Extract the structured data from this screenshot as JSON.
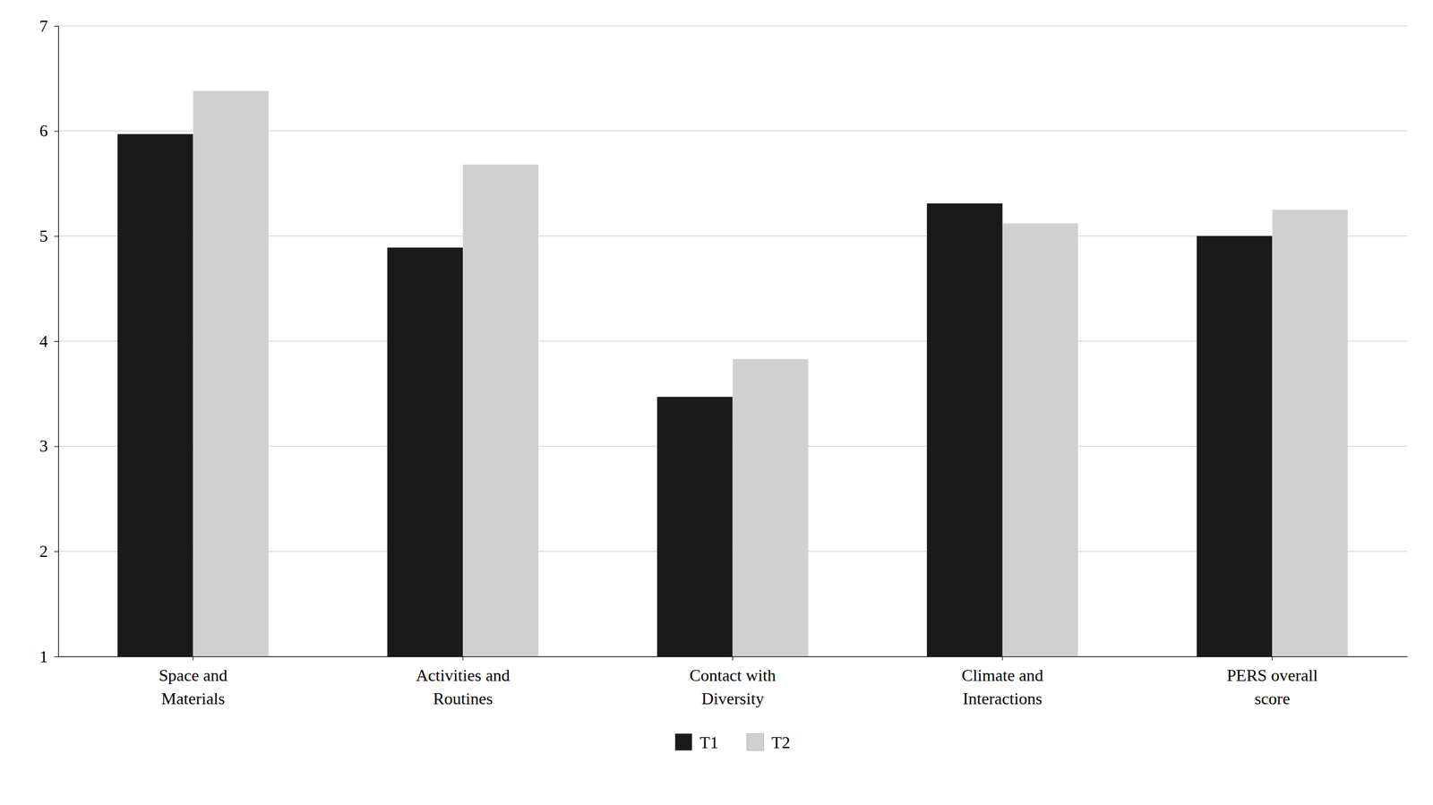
{
  "chart_data": {
    "type": "bar",
    "categories": [
      "Space and\nMaterials",
      "Activities and\nRoutines",
      "Contact with\nDiversity",
      "Climate and\nInteractions",
      "PERS overall\nscore"
    ],
    "series": [
      {
        "name": "T1",
        "color": "#1a1a1a",
        "values": [
          5.97,
          4.89,
          3.47,
          5.31,
          5.0
        ]
      },
      {
        "name": "T2",
        "color": "#d0d0d0",
        "values": [
          6.38,
          5.68,
          3.83,
          5.12,
          5.25
        ]
      }
    ],
    "ylim": [
      1,
      7
    ],
    "yticks": [
      1,
      2,
      3,
      4,
      5,
      6,
      7
    ],
    "grid": true,
    "legend": "bottom"
  }
}
